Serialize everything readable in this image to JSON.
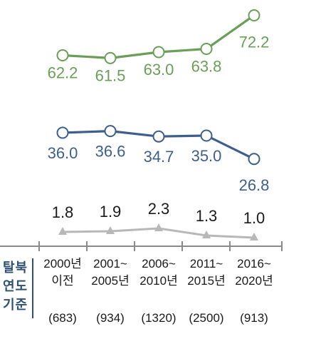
{
  "axis_label": [
    "탈북",
    "연도",
    "기준"
  ],
  "chart_data": {
    "type": "line",
    "categories": [
      [
        "2000년",
        "이전"
      ],
      [
        "2001~",
        "2005년"
      ],
      [
        "2006~",
        "2010년"
      ],
      [
        "2011~",
        "2015년"
      ],
      [
        "2016~",
        "2020년"
      ]
    ],
    "counts": [
      "(683)",
      "(934)",
      "(1320)",
      "(2500)",
      "(913)"
    ],
    "series": [
      {
        "values": [
          62.2,
          61.5,
          63.0,
          63.8,
          72.2
        ],
        "color": "#6a9f57",
        "marker": "circle",
        "labels": [
          "62.2",
          "61.5",
          "63.0",
          "63.8",
          "72.2"
        ]
      },
      {
        "values": [
          36.0,
          36.6,
          34.7,
          35.0,
          26.8
        ],
        "color": "#3e5f8c",
        "marker": "circle",
        "labels": [
          "36.0",
          "36.6",
          "34.7",
          "35.0",
          "26.8"
        ]
      },
      {
        "values": [
          1.8,
          1.9,
          2.3,
          1.3,
          1.0
        ],
        "color": "#b8b8b8",
        "marker": "triangle",
        "labels": [
          "1.8",
          "1.9",
          "2.3",
          "1.3",
          "1.0"
        ]
      }
    ],
    "grid": false,
    "legend": "none"
  }
}
